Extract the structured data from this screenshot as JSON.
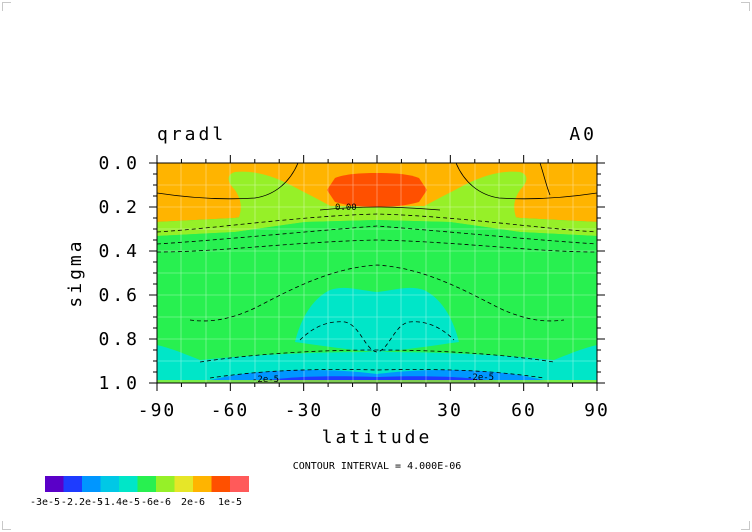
{
  "chart_data": {
    "type": "heatmap",
    "title_left": "qradl",
    "title_right": "A0",
    "xlabel": "latitude",
    "ylabel": "sigma",
    "xlim": [
      -90,
      90
    ],
    "ylim": [
      0.0,
      1.0
    ],
    "x_ticks": [
      "-90",
      "-60",
      "-30",
      "0",
      "30",
      "60",
      "90"
    ],
    "y_ticks": [
      "0.0",
      "0.2",
      "0.4",
      "0.6",
      "0.8",
      "1.0"
    ],
    "y_inverted": true,
    "contour_interval_text": "CONTOUR INTERVAL = 4.000E-06",
    "contour_labels": [
      "0.00",
      "-2e-5",
      "-2e-5"
    ],
    "colorbar": {
      "labels": [
        "-3e-5",
        "-2.2e-5",
        "-1.4e-5",
        "-6e-6",
        "2e-6",
        "1e-5"
      ],
      "colors": [
        "#5a00c8",
        "#1e3cff",
        "#0096ff",
        "#00c8e6",
        "#00e6c8",
        "#28f050",
        "#96f028",
        "#e6e628",
        "#ffb400",
        "#ff5000",
        "#ff5a5a"
      ]
    },
    "fields": [
      {
        "level": "-6e-6 to -2e-6",
        "color": "#28f050"
      },
      {
        "level": "-1e-5 to -6e-6",
        "color": "#00e6c8"
      },
      {
        "level": "-1.4e-5 to -1e-5",
        "color": "#0096ff"
      },
      {
        "level": "2e-6 to 6e-6",
        "color": "#96f028"
      },
      {
        "level": "6e-6 to 1e-5",
        "color": "#ffb400"
      },
      {
        "level": "> 1e-5",
        "color": "#ff5000"
      }
    ]
  }
}
